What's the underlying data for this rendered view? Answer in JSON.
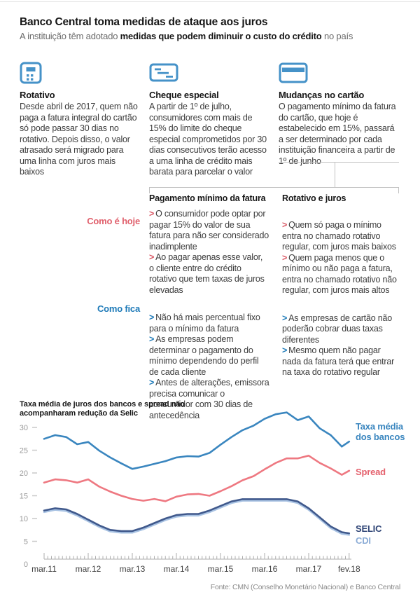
{
  "page": {
    "title": "Banco Central toma medidas de ataque aos juros",
    "subtitle_prefix": "A instituição têm adotado ",
    "subtitle_bold": "medidas que podem diminuir o custo do crédito",
    "subtitle_suffix": " no país"
  },
  "colors": {
    "icon_blue": "#4592c8",
    "today_red": "#e0606c",
    "future_blue": "#1e7ab8"
  },
  "measures": [
    {
      "icon": "calculator-icon",
      "title": "Rotativo",
      "body": "Desde abril de 2017, quem não paga a fatura integral do cartão só pode passar 30 dias no rotativo. Depois disso, o valor atrasado será migrado para uma linha com juros mais baixos"
    },
    {
      "icon": "cheque-icon",
      "title": "Cheque especial",
      "body": "A partir de 1º de julho, consumidores com mais de 15% do limite do cheque especial comprometidos por 30 dias consecutivos terão acesso a uma linha de crédito mais barata para parcelar o valor"
    },
    {
      "icon": "card-icon",
      "title": "Mudanças no cartão",
      "body": "O pagamento mínimo da fatura do cartão, que hoje é estabelecido em 15%, passará a ser determinado por cada instituição financeira a partir de 1º de junho"
    }
  ],
  "comparison": {
    "label_today": "Como é hoje",
    "label_future": "Como fica",
    "columns": [
      {
        "heading": "Pagamento mínimo da fatura",
        "today": [
          "O consumidor pode optar por pagar 15% do valor de sua fatura para não ser considerado inadimplente",
          "Ao pagar apenas esse valor, o cliente entre do crédito rotativo que tem taxas de juros elevadas"
        ],
        "future": [
          "Não há mais percentual fixo para o mínimo da fatura",
          "As empresas podem determinar o pagamento do mínimo dependendo do perfil de cada cliente",
          "Antes de alterações, emissora precisa comunicar o consumidor com 30 dias de antecedência"
        ]
      },
      {
        "heading": "Rotativo e juros",
        "today": [
          "Quem só paga o mínimo entra no chamado rotativo regular, com juros mais baixos",
          "Quem paga menos que o mínimo ou não paga a fatura, entra no chamado rotativo não regular, com juros mais altos"
        ],
        "future": [
          "As empresas de cartão não poderão cobrar duas taxas diferentes",
          "Mesmo quem não pagar nada da fatura terá que entrar na taxa do rotativo regular"
        ]
      }
    ]
  },
  "chart_data": {
    "type": "line",
    "title": "Taxa média de juros dos bancos e spread não acompanharam redução da Selic",
    "source": "Fonte: CMN (Conselho Monetário Nacional) e Banco Central",
    "x_unit": "months since mar.11",
    "x_tick_labels": [
      "mar.11",
      "mar.12",
      "mar.13",
      "mar.14",
      "mar.15",
      "mar.16",
      "mar.17",
      "fev.18"
    ],
    "x_tick_months": [
      0,
      12,
      24,
      36,
      48,
      60,
      72,
      83
    ],
    "yticks": [
      0,
      5,
      10,
      15,
      20,
      25,
      30
    ],
    "ylim": [
      0,
      34
    ],
    "grid": false,
    "legend_position": "right",
    "x_months": [
      0,
      3,
      6,
      9,
      12,
      15,
      18,
      21,
      24,
      27,
      30,
      33,
      36,
      39,
      42,
      45,
      48,
      51,
      54,
      57,
      60,
      63,
      66,
      69,
      72,
      75,
      78,
      81,
      83
    ],
    "series": [
      {
        "name": "Taxa média dos bancos",
        "legend_lines": [
          "Taxa média",
          "dos bancos"
        ],
        "color": "#3a86bf",
        "values": [
          27.5,
          28.3,
          27.9,
          26.3,
          26.8,
          24.9,
          23.4,
          22.1,
          20.9,
          21.4,
          22.0,
          22.6,
          23.4,
          23.7,
          23.6,
          24.4,
          26.2,
          27.9,
          29.4,
          30.4,
          31.9,
          32.9,
          33.3,
          31.6,
          32.4,
          29.8,
          28.3,
          25.8,
          26.9
        ]
      },
      {
        "name": "Spread",
        "legend_lines": [
          "Spread"
        ],
        "color": "#ee7881",
        "values": [
          17.9,
          18.6,
          18.4,
          17.9,
          18.6,
          17.0,
          15.9,
          15.0,
          14.3,
          13.9,
          14.3,
          13.8,
          14.8,
          15.3,
          15.4,
          15.0,
          16.0,
          17.1,
          18.4,
          19.3,
          20.8,
          22.2,
          23.2,
          23.2,
          23.8,
          22.2,
          21.0,
          19.6,
          20.5
        ]
      },
      {
        "name": "SELIC",
        "legend_lines": [
          "SELIC"
        ],
        "color": "#40598c",
        "values": [
          11.75,
          12.25,
          12.0,
          11.0,
          9.75,
          8.5,
          7.5,
          7.25,
          7.25,
          8.0,
          9.0,
          10.0,
          10.75,
          11.0,
          11.0,
          11.75,
          12.75,
          13.75,
          14.25,
          14.25,
          14.25,
          14.25,
          14.25,
          13.75,
          12.25,
          10.25,
          8.25,
          7.0,
          6.75
        ]
      },
      {
        "name": "CDI",
        "legend_lines": [
          "CDI"
        ],
        "color": "#a9c3e3",
        "values": [
          11.4,
          11.9,
          11.65,
          10.65,
          9.4,
          8.15,
          7.15,
          6.9,
          6.9,
          7.65,
          8.65,
          9.65,
          10.4,
          10.65,
          10.65,
          11.4,
          12.4,
          13.4,
          13.9,
          13.9,
          13.9,
          13.9,
          13.9,
          13.4,
          11.9,
          9.9,
          7.9,
          6.65,
          6.4
        ]
      }
    ]
  }
}
